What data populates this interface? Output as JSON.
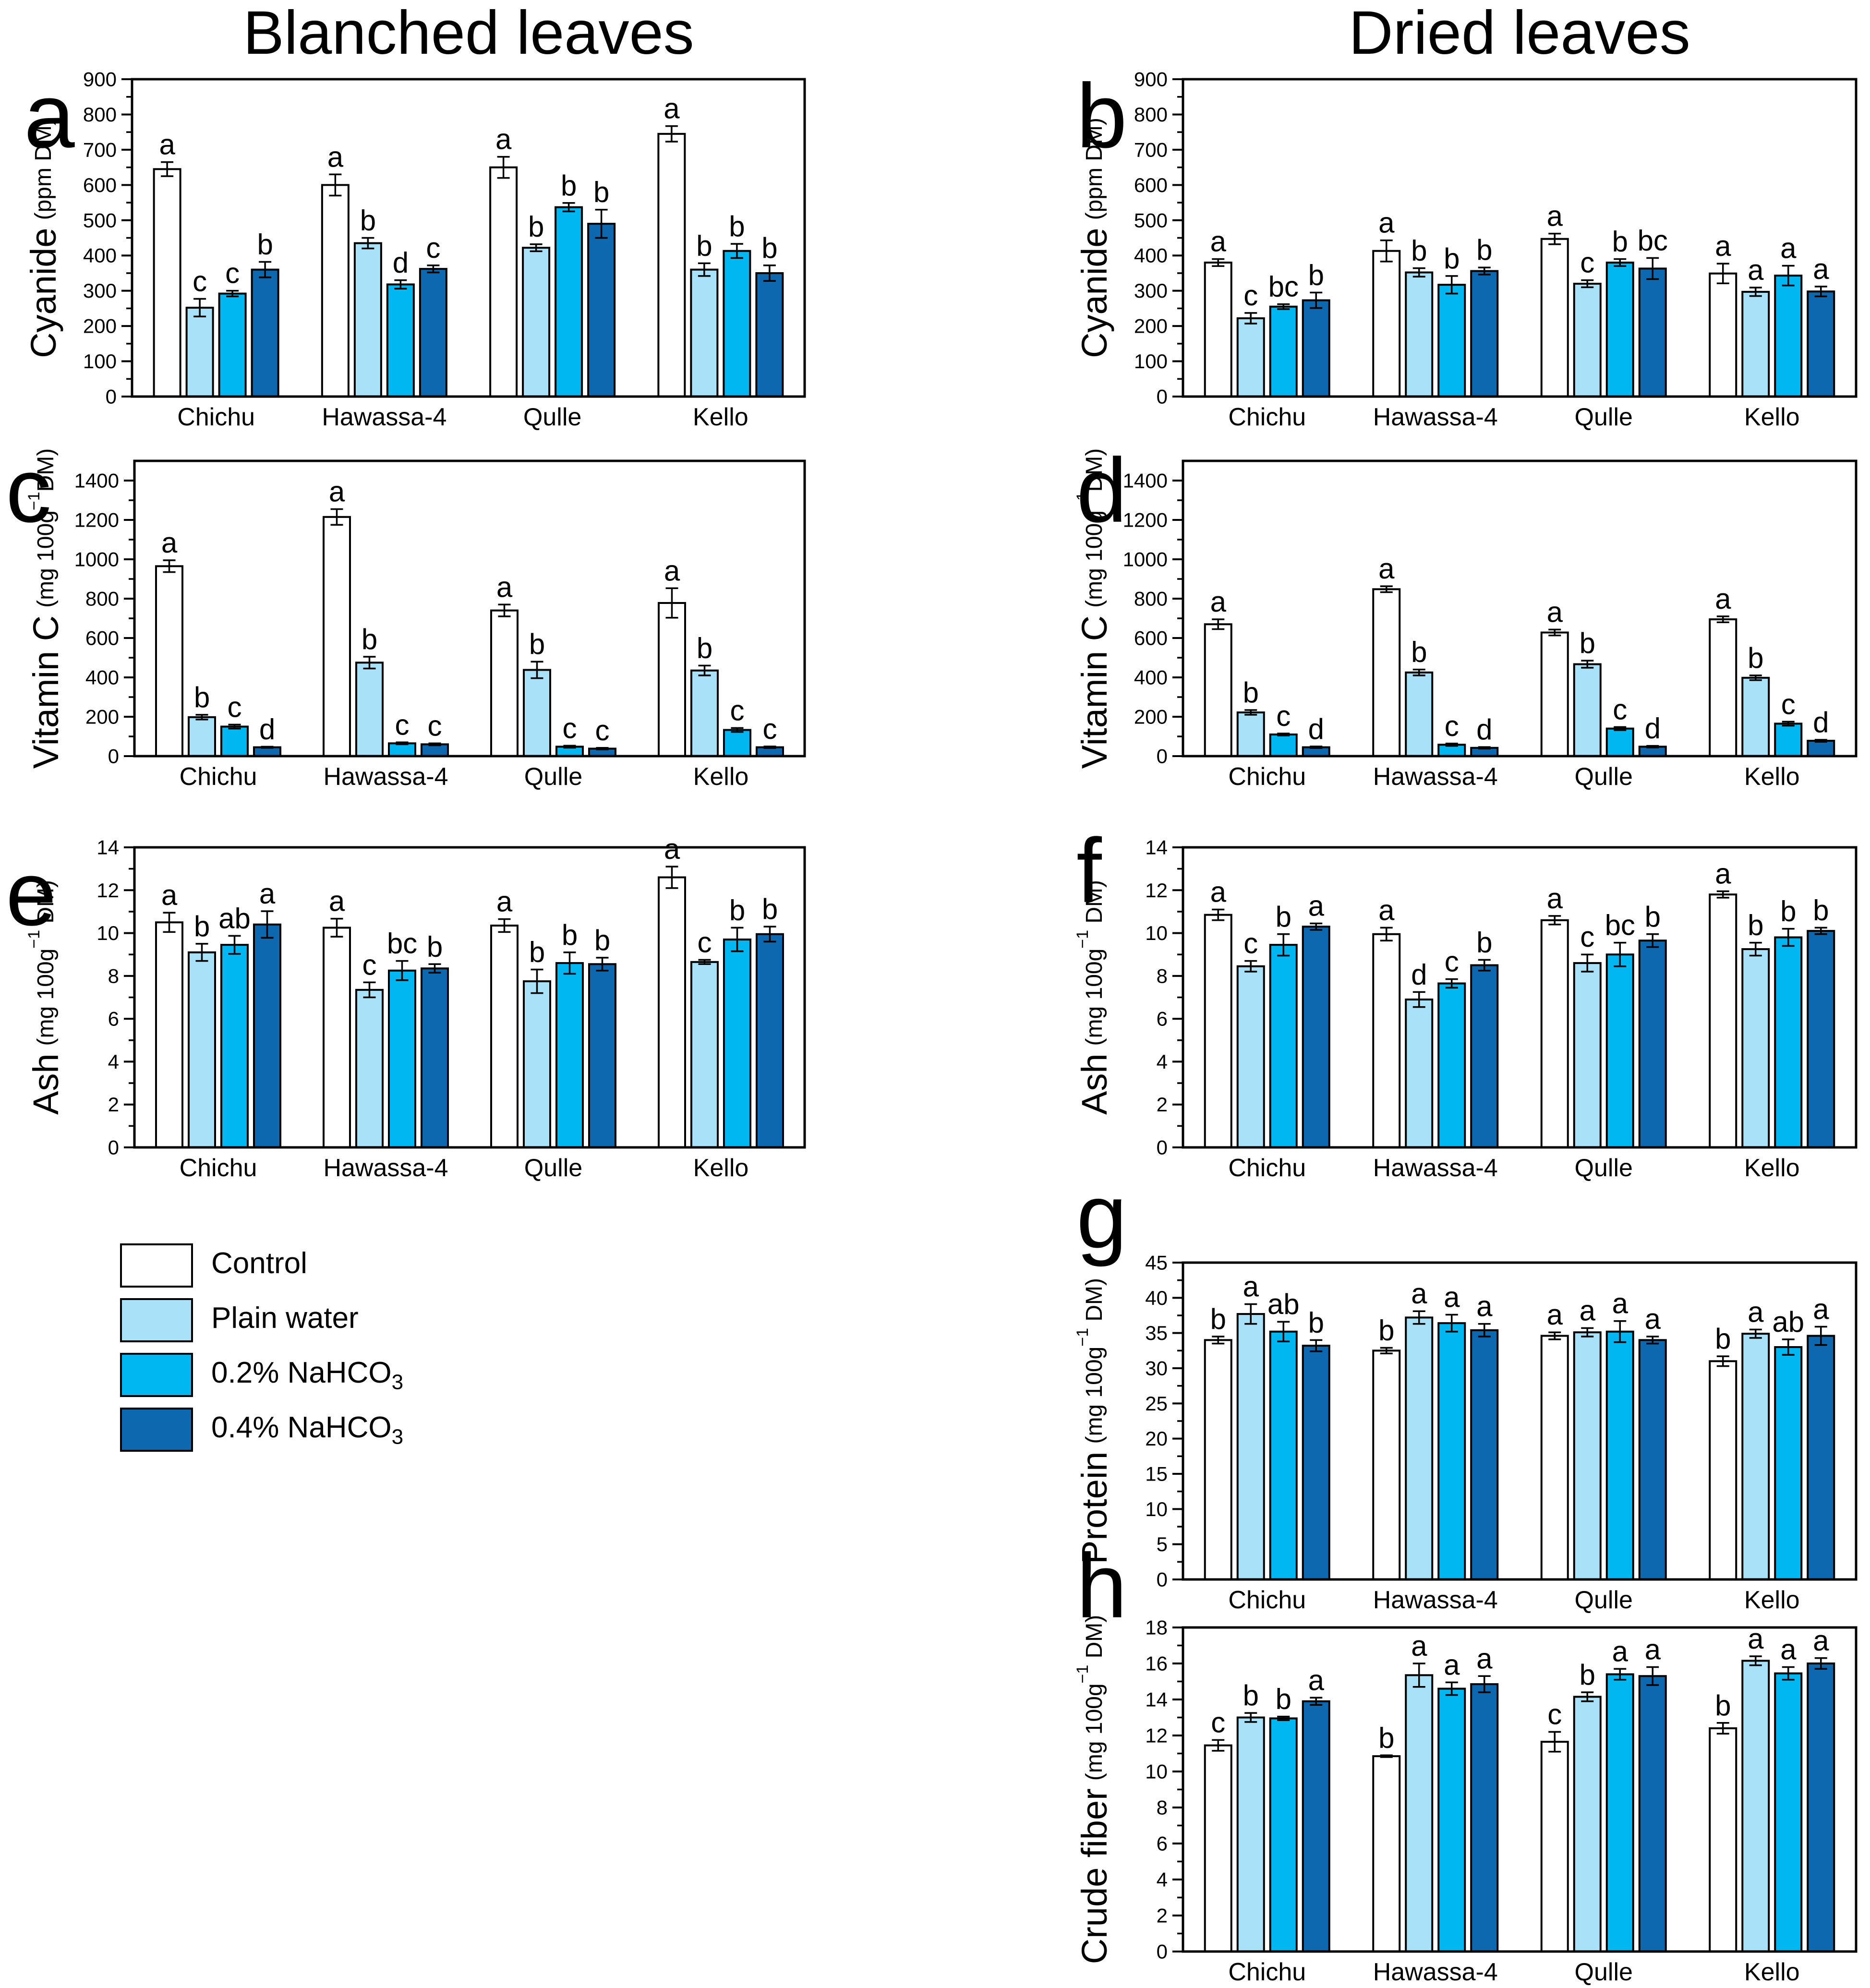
{
  "figure": {
    "column_titles": {
      "left": "Blanched leaves",
      "right": "Dried leaves"
    }
  },
  "legend": {
    "position": "left-bottom",
    "items": [
      {
        "label": "Control",
        "subscript": "",
        "color": "#FFFFFF"
      },
      {
        "label": "Plain water",
        "subscript": "",
        "color": "#A9E2F8"
      },
      {
        "label": "0.2% NaHCO",
        "subscript": "3",
        "color": "#00B7F2"
      },
      {
        "label": "0.4% NaHCO",
        "subscript": "3",
        "color": "#0D68B0"
      }
    ]
  },
  "chart_data": [
    {
      "id": "a",
      "panel_letter": "a",
      "column": "left",
      "type": "bar",
      "ylabel": "Cyanide",
      "unit": {
        "pre": "(ppm DM)",
        "sup": "",
        "post": ""
      },
      "ylim": [
        0,
        900
      ],
      "tick_step": 100,
      "minor_step": 50,
      "tick_max": 900,
      "grid": false,
      "categories": [
        "Chichu",
        "Hawassa-4",
        "Qulle",
        "Kello"
      ],
      "series": [
        {
          "name": "Control",
          "values": [
            645,
            600,
            650,
            745
          ],
          "errors": [
            20,
            30,
            30,
            22
          ],
          "letters": [
            "a",
            "a",
            "a",
            "a"
          ]
        },
        {
          "name": "Plain water",
          "values": [
            252,
            435,
            422,
            360
          ],
          "errors": [
            25,
            15,
            10,
            18
          ],
          "letters": [
            "c",
            "b",
            "b",
            "b"
          ]
        },
        {
          "name": "0.2% NaHCO3",
          "values": [
            292,
            318,
            537,
            413
          ],
          "errors": [
            8,
            12,
            12,
            20
          ],
          "letters": [
            "c",
            "d",
            "b",
            "b"
          ]
        },
        {
          "name": "0.4% NaHCO3",
          "values": [
            360,
            362,
            490,
            350
          ],
          "errors": [
            22,
            10,
            40,
            22
          ],
          "letters": [
            "b",
            "c",
            "b",
            "b"
          ]
        }
      ]
    },
    {
      "id": "b",
      "panel_letter": "b",
      "column": "right",
      "type": "bar",
      "ylabel": "Cyanide",
      "unit": {
        "pre": "(ppm DM)",
        "sup": "",
        "post": ""
      },
      "ylim": [
        0,
        900
      ],
      "tick_step": 100,
      "minor_step": 50,
      "tick_max": 900,
      "grid": false,
      "categories": [
        "Chichu",
        "Hawassa-4",
        "Qulle",
        "Kello"
      ],
      "series": [
        {
          "name": "Control",
          "values": [
            380,
            413,
            447,
            349
          ],
          "errors": [
            10,
            30,
            15,
            28
          ],
          "letters": [
            "a",
            "a",
            "a",
            "a"
          ]
        },
        {
          "name": "Plain water",
          "values": [
            222,
            352,
            320,
            297
          ],
          "errors": [
            15,
            12,
            10,
            12
          ],
          "letters": [
            "c",
            "b",
            "c",
            "a"
          ]
        },
        {
          "name": "0.2% NaHCO3",
          "values": [
            255,
            317,
            380,
            343
          ],
          "errors": [
            7,
            25,
            10,
            28
          ],
          "letters": [
            "bc",
            "b",
            "b",
            "a"
          ]
        },
        {
          "name": "0.4% NaHCO3",
          "values": [
            273,
            356,
            363,
            298
          ],
          "errors": [
            22,
            10,
            30,
            14
          ],
          "letters": [
            "b",
            "b",
            "bc",
            "a"
          ]
        }
      ]
    },
    {
      "id": "c",
      "panel_letter": "c",
      "column": "left",
      "type": "bar",
      "ylabel": "Vitamin C",
      "unit": {
        "pre": "(mg 100g",
        "sup": "−1",
        "post": "DM)"
      },
      "ylim": [
        0,
        1500
      ],
      "tick_step": 200,
      "minor_step": 100,
      "tick_max": 1400,
      "grid": false,
      "categories": [
        "Chichu",
        "Hawassa-4",
        "Qulle",
        "Kello"
      ],
      "series": [
        {
          "name": "Control",
          "values": [
            965,
            1215,
            740,
            778
          ],
          "errors": [
            30,
            40,
            30,
            75
          ],
          "letters": [
            "a",
            "a",
            "a",
            "a"
          ]
        },
        {
          "name": "Plain water",
          "values": [
            198,
            475,
            438,
            435
          ],
          "errors": [
            12,
            30,
            42,
            25
          ],
          "letters": [
            "b",
            "b",
            "b",
            "b"
          ]
        },
        {
          "name": "0.2% NaHCO3",
          "values": [
            150,
            65,
            48,
            133
          ],
          "errors": [
            10,
            5,
            5,
            10
          ],
          "letters": [
            "c",
            "c",
            "c",
            "c"
          ]
        },
        {
          "name": "0.4% NaHCO3",
          "values": [
            45,
            60,
            38,
            45
          ],
          "errors": [
            3,
            5,
            4,
            4
          ],
          "letters": [
            "d",
            "c",
            "c",
            "c"
          ]
        }
      ]
    },
    {
      "id": "d",
      "panel_letter": "d",
      "column": "right",
      "type": "bar",
      "ylabel": "Vitamin C",
      "unit": {
        "pre": "(mg 100g",
        "sup": "−1",
        "post": "DM)"
      },
      "ylim": [
        0,
        1500
      ],
      "tick_step": 200,
      "minor_step": 100,
      "tick_max": 1400,
      "grid": false,
      "categories": [
        "Chichu",
        "Hawassa-4",
        "Qulle",
        "Kello"
      ],
      "series": [
        {
          "name": "Control",
          "values": [
            670,
            848,
            628,
            695
          ],
          "errors": [
            25,
            15,
            15,
            15
          ],
          "letters": [
            "a",
            "a",
            "a",
            "a"
          ]
        },
        {
          "name": "Plain water",
          "values": [
            222,
            425,
            467,
            398
          ],
          "errors": [
            12,
            15,
            18,
            12
          ],
          "letters": [
            "b",
            "b",
            "b",
            "b"
          ]
        },
        {
          "name": "0.2% NaHCO3",
          "values": [
            110,
            58,
            140,
            165
          ],
          "errors": [
            5,
            6,
            8,
            10
          ],
          "letters": [
            "c",
            "c",
            "c",
            "c"
          ]
        },
        {
          "name": "0.4% NaHCO3",
          "values": [
            45,
            42,
            48,
            78
          ],
          "errors": [
            4,
            4,
            4,
            5
          ],
          "letters": [
            "d",
            "d",
            "d",
            "d"
          ]
        }
      ]
    },
    {
      "id": "e",
      "panel_letter": "e",
      "column": "left",
      "type": "bar",
      "ylabel": "Ash",
      "unit": {
        "pre": "(mg 100g",
        "sup": "−1",
        "post": " DM)"
      },
      "ylim": [
        0,
        14
      ],
      "tick_step": 2,
      "minor_step": 1,
      "tick_max": 14,
      "grid": false,
      "categories": [
        "Chichu",
        "Hawassa-4",
        "Qulle",
        "Kello"
      ],
      "series": [
        {
          "name": "Control",
          "values": [
            10.5,
            10.25,
            10.35,
            12.6
          ],
          "errors": [
            0.45,
            0.42,
            0.3,
            0.5
          ],
          "letters": [
            "a",
            "a",
            "a",
            "a"
          ]
        },
        {
          "name": "Plain water",
          "values": [
            9.1,
            7.35,
            7.75,
            8.65
          ],
          "errors": [
            0.4,
            0.35,
            0.55,
            0.1
          ],
          "letters": [
            "b",
            "c",
            "b",
            "c"
          ]
        },
        {
          "name": "0.2% NaHCO3",
          "values": [
            9.45,
            8.25,
            8.6,
            9.7
          ],
          "errors": [
            0.42,
            0.45,
            0.5,
            0.55
          ],
          "letters": [
            "ab",
            "bc",
            "b",
            "b"
          ]
        },
        {
          "name": "0.4% NaHCO3",
          "values": [
            10.4,
            8.35,
            8.55,
            9.95
          ],
          "errors": [
            0.62,
            0.2,
            0.3,
            0.35
          ],
          "letters": [
            "a",
            "b",
            "b",
            "b"
          ]
        }
      ]
    },
    {
      "id": "f",
      "panel_letter": "f",
      "column": "right",
      "type": "bar",
      "ylabel": "Ash",
      "unit": {
        "pre": "(mg 100g",
        "sup": "−1",
        "post": " DM)"
      },
      "ylim": [
        0,
        14
      ],
      "tick_step": 2,
      "minor_step": 1,
      "tick_max": 14,
      "grid": false,
      "categories": [
        "Chichu",
        "Hawassa-4",
        "Qulle",
        "Kello"
      ],
      "series": [
        {
          "name": "Control",
          "values": [
            10.85,
            9.95,
            10.6,
            11.8
          ],
          "errors": [
            0.25,
            0.3,
            0.2,
            0.15
          ],
          "letters": [
            "a",
            "a",
            "a",
            "a"
          ]
        },
        {
          "name": "Plain water",
          "values": [
            8.45,
            6.9,
            8.6,
            9.25
          ],
          "errors": [
            0.25,
            0.35,
            0.4,
            0.3
          ],
          "letters": [
            "c",
            "d",
            "c",
            "b"
          ]
        },
        {
          "name": "0.2% NaHCO3",
          "values": [
            9.45,
            7.65,
            9.0,
            9.8
          ],
          "errors": [
            0.5,
            0.2,
            0.55,
            0.4
          ],
          "letters": [
            "b",
            "c",
            "bc",
            "b"
          ]
        },
        {
          "name": "0.4% NaHCO3",
          "values": [
            10.3,
            8.5,
            9.65,
            10.1
          ],
          "errors": [
            0.15,
            0.25,
            0.3,
            0.15
          ],
          "letters": [
            "a",
            "b",
            "b",
            "b"
          ]
        }
      ]
    },
    {
      "id": "g",
      "panel_letter": "g",
      "column": "right",
      "type": "bar",
      "ylabel": "Protein",
      "unit": {
        "pre": "(mg 100g",
        "sup": "−1",
        "post": " DM)"
      },
      "ylim": [
        0,
        45
      ],
      "tick_step": 5,
      "minor_step": 2.5,
      "tick_max": 45,
      "grid": false,
      "categories": [
        "Chichu",
        "Hawassa-4",
        "Qulle",
        "Kello"
      ],
      "series": [
        {
          "name": "Control",
          "values": [
            34.0,
            32.5,
            34.6,
            31.0
          ],
          "errors": [
            0.5,
            0.4,
            0.5,
            0.7
          ],
          "letters": [
            "b",
            "b",
            "a",
            "b"
          ]
        },
        {
          "name": "Plain water",
          "values": [
            37.7,
            37.2,
            35.1,
            34.9
          ],
          "errors": [
            1.4,
            0.9,
            0.6,
            0.6
          ],
          "letters": [
            "a",
            "a",
            "a",
            "a"
          ]
        },
        {
          "name": "0.2% NaHCO3",
          "values": [
            35.2,
            36.4,
            35.2,
            33.0
          ],
          "errors": [
            1.4,
            1.2,
            1.5,
            1.1
          ],
          "letters": [
            "ab",
            "a",
            "a",
            "ab"
          ]
        },
        {
          "name": "0.4% NaHCO3",
          "values": [
            33.2,
            35.4,
            34.0,
            34.6
          ],
          "errors": [
            0.8,
            0.9,
            0.5,
            1.3
          ],
          "letters": [
            "b",
            "a",
            "a",
            "a"
          ]
        }
      ]
    },
    {
      "id": "h",
      "panel_letter": "h",
      "column": "right",
      "type": "bar",
      "ylabel": "Crude fiber",
      "unit": {
        "pre": "(mg 100g",
        "sup": "−1",
        "post": " DM)"
      },
      "ylim": [
        0,
        18
      ],
      "tick_step": 2,
      "minor_step": 1,
      "tick_max": 18,
      "grid": false,
      "categories": [
        "Chichu",
        "Hawassa-4",
        "Qulle",
        "Kello"
      ],
      "series": [
        {
          "name": "Control",
          "values": [
            11.45,
            10.85,
            11.65,
            12.4
          ],
          "errors": [
            0.3,
            0.05,
            0.55,
            0.3
          ],
          "letters": [
            "c",
            "b",
            "c",
            "b"
          ]
        },
        {
          "name": "Plain water",
          "values": [
            13.0,
            15.35,
            14.15,
            16.15
          ],
          "errors": [
            0.25,
            0.65,
            0.25,
            0.25
          ],
          "letters": [
            "b",
            "a",
            "b",
            "a"
          ]
        },
        {
          "name": "0.2% NaHCO3",
          "values": [
            12.95,
            14.6,
            15.4,
            15.45
          ],
          "errors": [
            0.1,
            0.35,
            0.3,
            0.35
          ],
          "letters": [
            "b",
            "a",
            "a",
            "a"
          ]
        },
        {
          "name": "0.4% NaHCO3",
          "values": [
            13.9,
            14.85,
            15.3,
            16.0
          ],
          "errors": [
            0.2,
            0.45,
            0.5,
            0.3
          ],
          "letters": [
            "a",
            "a",
            "a",
            "a"
          ]
        }
      ]
    }
  ]
}
